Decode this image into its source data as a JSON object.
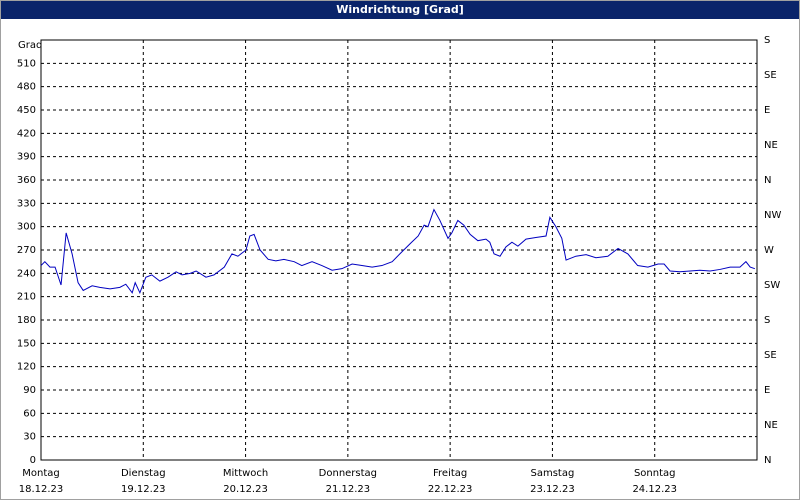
{
  "chart_data": {
    "type": "line",
    "title": "Windrichtung [Grad]",
    "y_label": "Grad",
    "x": [
      0,
      0.9,
      2.1,
      3.3,
      4.7,
      5.9,
      7.3,
      8.7,
      9.9,
      12,
      13.8,
      16.2,
      18.5,
      19.9,
      21.4,
      22.1,
      23.2,
      24.6,
      26,
      27.9,
      29.8,
      31.7,
      33.1,
      35,
      36.4,
      38.7,
      40.6,
      43,
      44.8,
      46.2,
      48.1,
      49,
      50,
      51.4,
      53.3,
      55.1,
      57,
      59.4,
      61.2,
      63.6,
      65.9,
      68.3,
      70.6,
      73,
      75.3,
      77.7,
      80,
      82.4,
      84.2,
      86.6,
      88.5,
      89.9,
      90.8,
      92.2,
      93.6,
      95.5,
      96.4,
      97.8,
      99.2,
      100.7,
      102.5,
      104.4,
      105.3,
      106.3,
      107.7,
      109.1,
      110.5,
      111.9,
      113.8,
      116.1,
      118.5,
      119.4,
      120.8,
      122.2,
      123.2,
      125.5,
      127.9,
      130.2,
      133,
      135.4,
      137.7,
      140,
      142.4,
      144.8,
      146.2,
      147.6,
      149.9,
      152.3,
      154.6,
      157,
      159.3,
      161.7,
      164,
      165.4,
      166.4,
      167.5
    ],
    "series": [
      {
        "name": "Windrichtung",
        "color": "#0000c0",
        "values": [
          250,
          255,
          248,
          248,
          225,
          292,
          265,
          228,
          218,
          224,
          222,
          220,
          222,
          226,
          215,
          228,
          215,
          235,
          238,
          230,
          235,
          242,
          238,
          240,
          243,
          235,
          238,
          248,
          265,
          262,
          270,
          288,
          290,
          270,
          258,
          256,
          258,
          255,
          250,
          255,
          250,
          244,
          246,
          252,
          250,
          248,
          250,
          255,
          265,
          278,
          288,
          302,
          300,
          322,
          308,
          285,
          292,
          308,
          302,
          290,
          282,
          284,
          280,
          265,
          262,
          274,
          280,
          275,
          284,
          286,
          288,
          312,
          300,
          285,
          257,
          262,
          264,
          260,
          262,
          272,
          265,
          250,
          248,
          252,
          252,
          243,
          242,
          243,
          244,
          243,
          245,
          248,
          248,
          255,
          248,
          246
        ]
      }
    ],
    "xlim": [
      0,
      168
    ],
    "xticks": [
      {
        "value": 0,
        "label": "Montag"
      },
      {
        "value": 24,
        "label": "Dienstag"
      },
      {
        "value": 48,
        "label": "Mittwoch"
      },
      {
        "value": 72,
        "label": "Donnerstag"
      },
      {
        "value": 96,
        "label": "Freitag"
      },
      {
        "value": 120,
        "label": "Samstag"
      },
      {
        "value": 144,
        "label": "Sonntag"
      }
    ],
    "xtick_dates": [
      "18.12.23",
      "19.12.23",
      "20.12.23",
      "21.12.23",
      "22.12.23",
      "23.12.23",
      "24.12.23"
    ],
    "ylim": [
      0,
      540
    ],
    "yticks": [
      0,
      30,
      60,
      90,
      120,
      150,
      180,
      210,
      240,
      270,
      300,
      330,
      360,
      390,
      420,
      450,
      480,
      510
    ],
    "y2lim": [
      0,
      540
    ],
    "y2ticks": [
      {
        "value": 0,
        "label": "N"
      },
      {
        "value": 45,
        "label": "NE"
      },
      {
        "value": 90,
        "label": "E"
      },
      {
        "value": 135,
        "label": "SE"
      },
      {
        "value": 180,
        "label": "S"
      },
      {
        "value": 225,
        "label": "SW"
      },
      {
        "value": 270,
        "label": "W"
      },
      {
        "value": 315,
        "label": "NW"
      },
      {
        "value": 360,
        "label": "N"
      },
      {
        "value": 405,
        "label": "NE"
      },
      {
        "value": 450,
        "label": "E"
      },
      {
        "value": 495,
        "label": "SE"
      },
      {
        "value": 540,
        "label": "S"
      }
    ],
    "grid": true
  }
}
